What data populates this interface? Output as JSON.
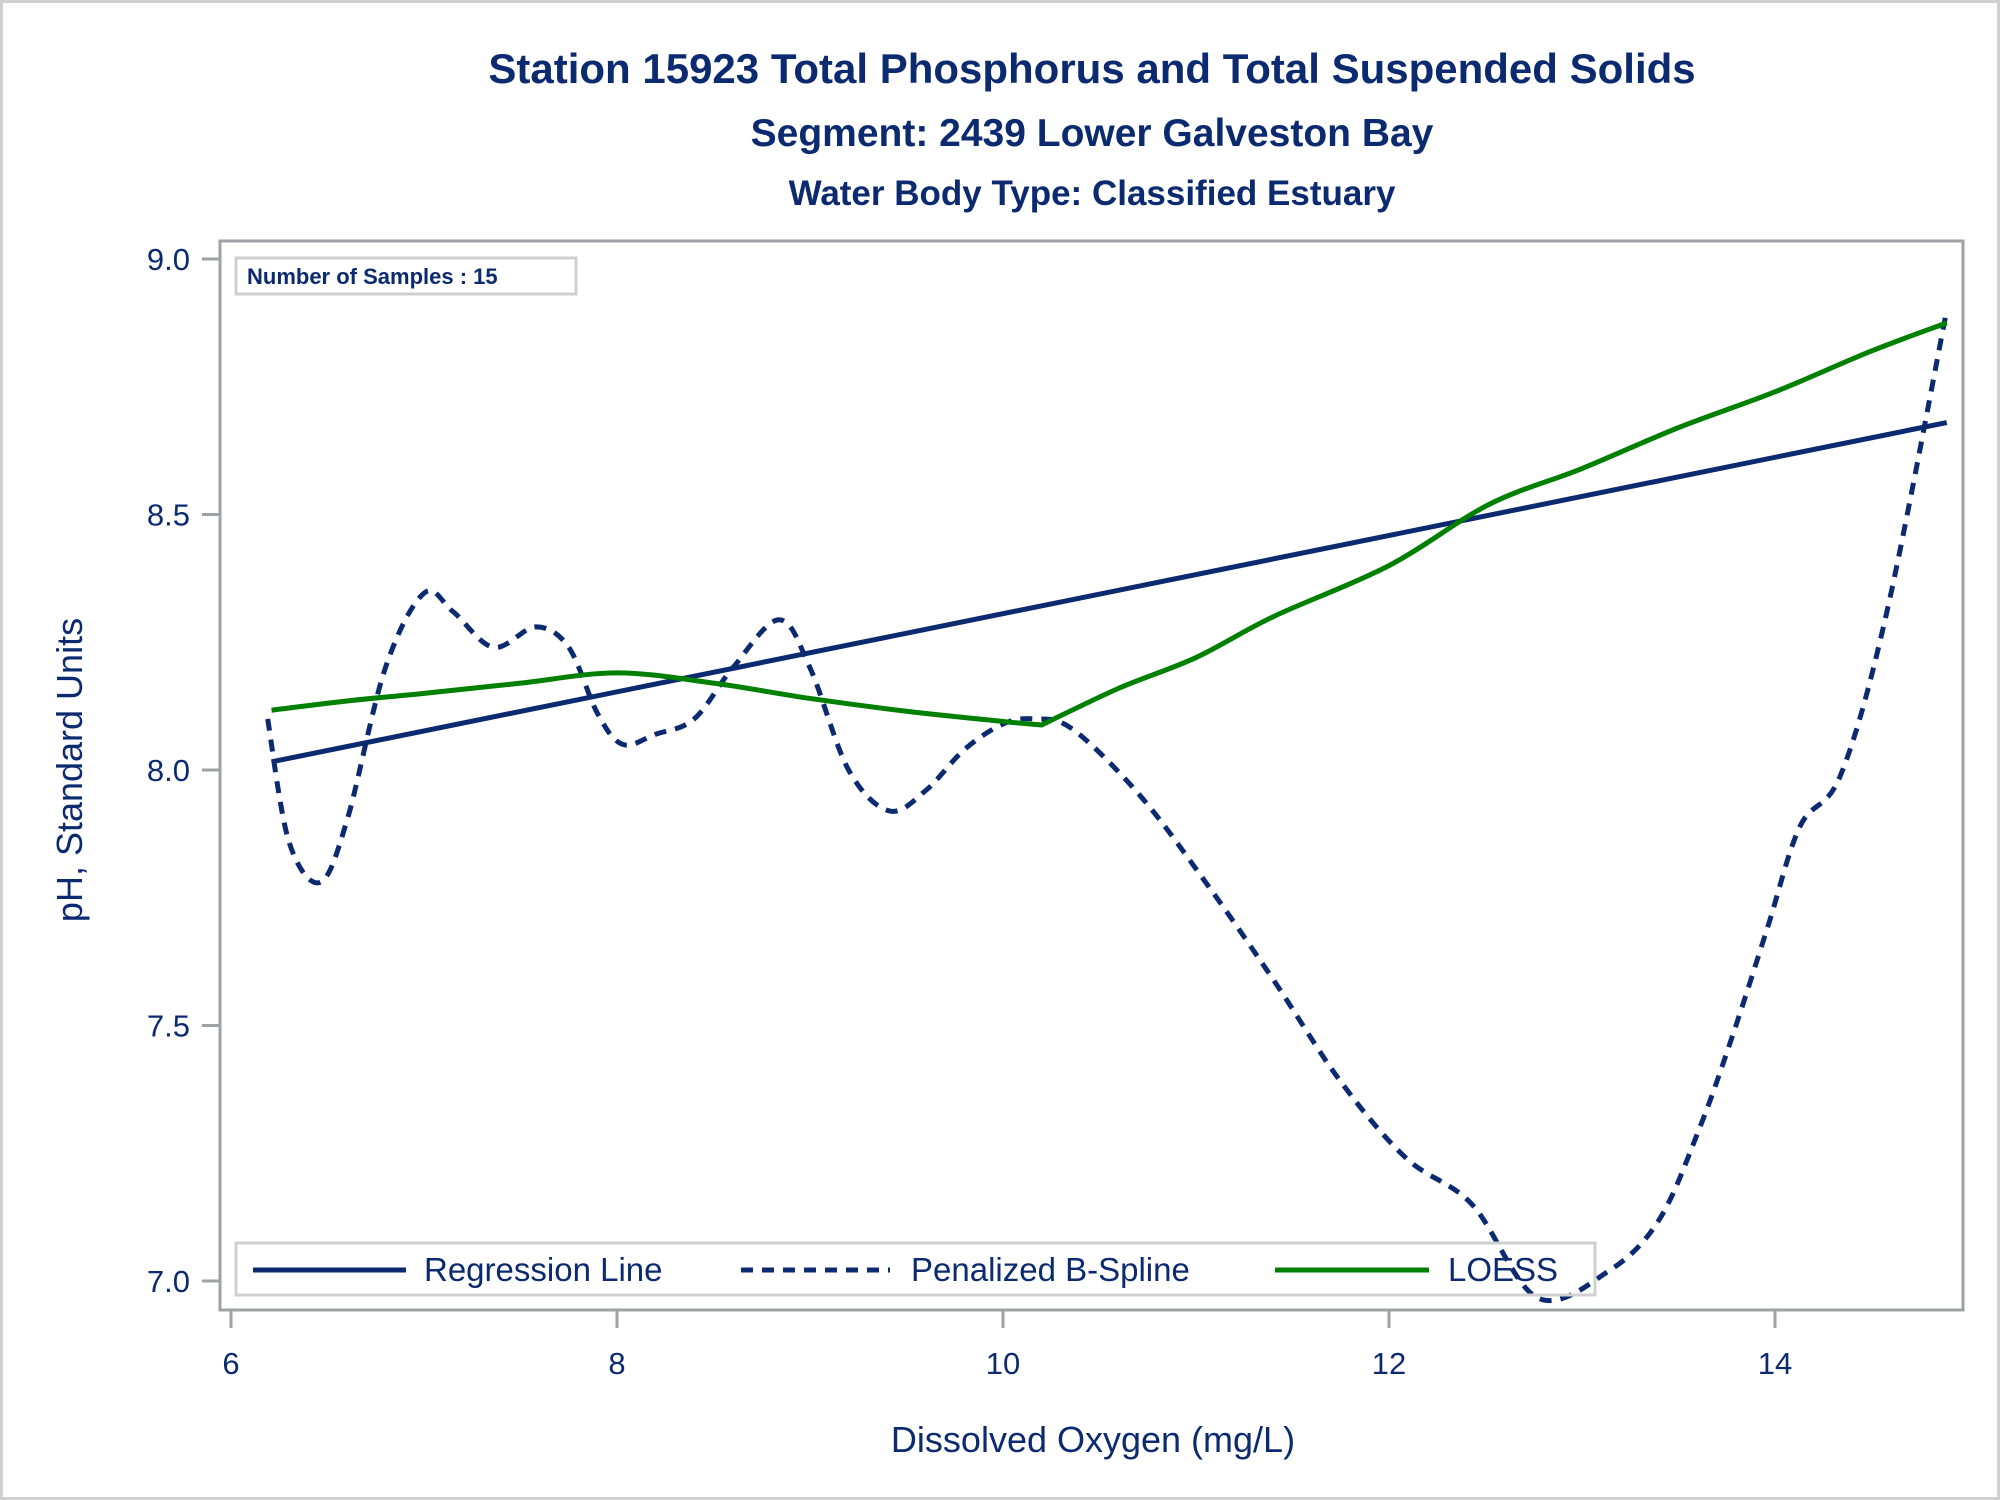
{
  "chart_data": {
    "type": "line",
    "title": "Station 15923  Total Phosphorus and Total Suspended Solids",
    "subtitle": "Segment: 2439  Lower Galveston Bay",
    "subtitle2": "Water Body Type: Classified Estuary",
    "xlabel": "Dissolved Oxygen (mg/L)",
    "ylabel": "pH, Standard Units",
    "xlim": [
      5.94,
      14.97
    ],
    "ylim": [
      6.94,
      9.04
    ],
    "xticks": [
      6,
      8,
      10,
      12,
      14
    ],
    "xtick_labels": [
      "6",
      "8",
      "10",
      "12",
      "14"
    ],
    "yticks": [
      7.0,
      7.5,
      8.0,
      8.5,
      9.0
    ],
    "ytick_labels": [
      "7.0",
      "7.5",
      "8.0",
      "8.5",
      "9.0"
    ],
    "grid": false,
    "inset_label": "Number of Samples : 15",
    "legend_position": "bottom-inside",
    "series": [
      {
        "name": "Regression Line",
        "style": "solid",
        "color": "#0b2a6f",
        "x": [
          6.21,
          14.89
        ],
        "y": [
          8.016,
          8.68
        ]
      },
      {
        "name": "Penalized B-Spline",
        "style": "dashed",
        "color": "#0b2a6f",
        "x": [
          6.19,
          6.3,
          6.46,
          6.6,
          6.8,
          7.0,
          7.15,
          7.36,
          7.58,
          7.75,
          7.9,
          8.03,
          8.2,
          8.4,
          8.6,
          8.84,
          9.0,
          9.2,
          9.41,
          9.6,
          9.8,
          10.0,
          10.16,
          10.36,
          10.71,
          11.06,
          11.4,
          11.75,
          12.09,
          12.43,
          12.77,
          13.14,
          13.4,
          13.61,
          13.78,
          13.96,
          14.13,
          14.34,
          14.58,
          14.89
        ],
        "y": [
          8.1,
          7.86,
          7.78,
          7.9,
          8.2,
          8.346,
          8.31,
          8.24,
          8.28,
          8.24,
          8.11,
          8.05,
          8.07,
          8.1,
          8.2,
          8.294,
          8.2,
          8.0,
          7.92,
          7.96,
          8.04,
          8.09,
          8.1,
          8.08,
          7.95,
          7.775,
          7.59,
          7.39,
          7.24,
          7.15,
          6.967,
          7.02,
          7.12,
          7.3,
          7.48,
          7.69,
          7.89,
          7.99,
          8.31,
          8.9
        ]
      },
      {
        "name": "LOESS",
        "style": "solid",
        "color": "#008000",
        "x": [
          6.21,
          6.6,
          7.0,
          7.5,
          8.0,
          8.5,
          9.0,
          9.5,
          10.0,
          10.2,
          10.6,
          11.0,
          11.4,
          12.0,
          12.52,
          13.0,
          13.5,
          14.0,
          14.5,
          14.89
        ],
        "y": [
          8.117,
          8.135,
          8.15,
          8.17,
          8.19,
          8.17,
          8.14,
          8.115,
          8.095,
          8.088,
          8.16,
          8.22,
          8.3,
          8.4,
          8.52,
          8.59,
          8.67,
          8.74,
          8.82,
          8.875
        ]
      }
    ]
  }
}
